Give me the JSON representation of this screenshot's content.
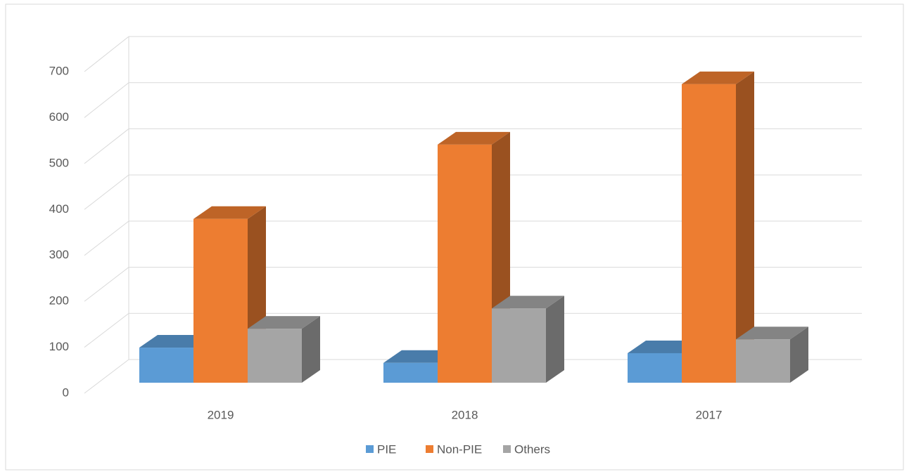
{
  "chart_data": {
    "type": "bar3d",
    "categories": [
      "2019",
      "2018",
      "2017"
    ],
    "series": [
      {
        "name": "PIE",
        "color": "#5b9bd5",
        "values": [
          76,
          43,
          64
        ]
      },
      {
        "name": "Non-PIE",
        "color": "#ed7d31",
        "values": [
          355,
          516,
          647
        ]
      },
      {
        "name": "Others",
        "color": "#a5a5a5",
        "values": [
          117,
          161,
          94
        ]
      }
    ],
    "ylim": [
      0,
      700
    ],
    "yticks": [
      0,
      100,
      200,
      300,
      400,
      500,
      600,
      700
    ],
    "grid": true,
    "legend": "bottom"
  }
}
